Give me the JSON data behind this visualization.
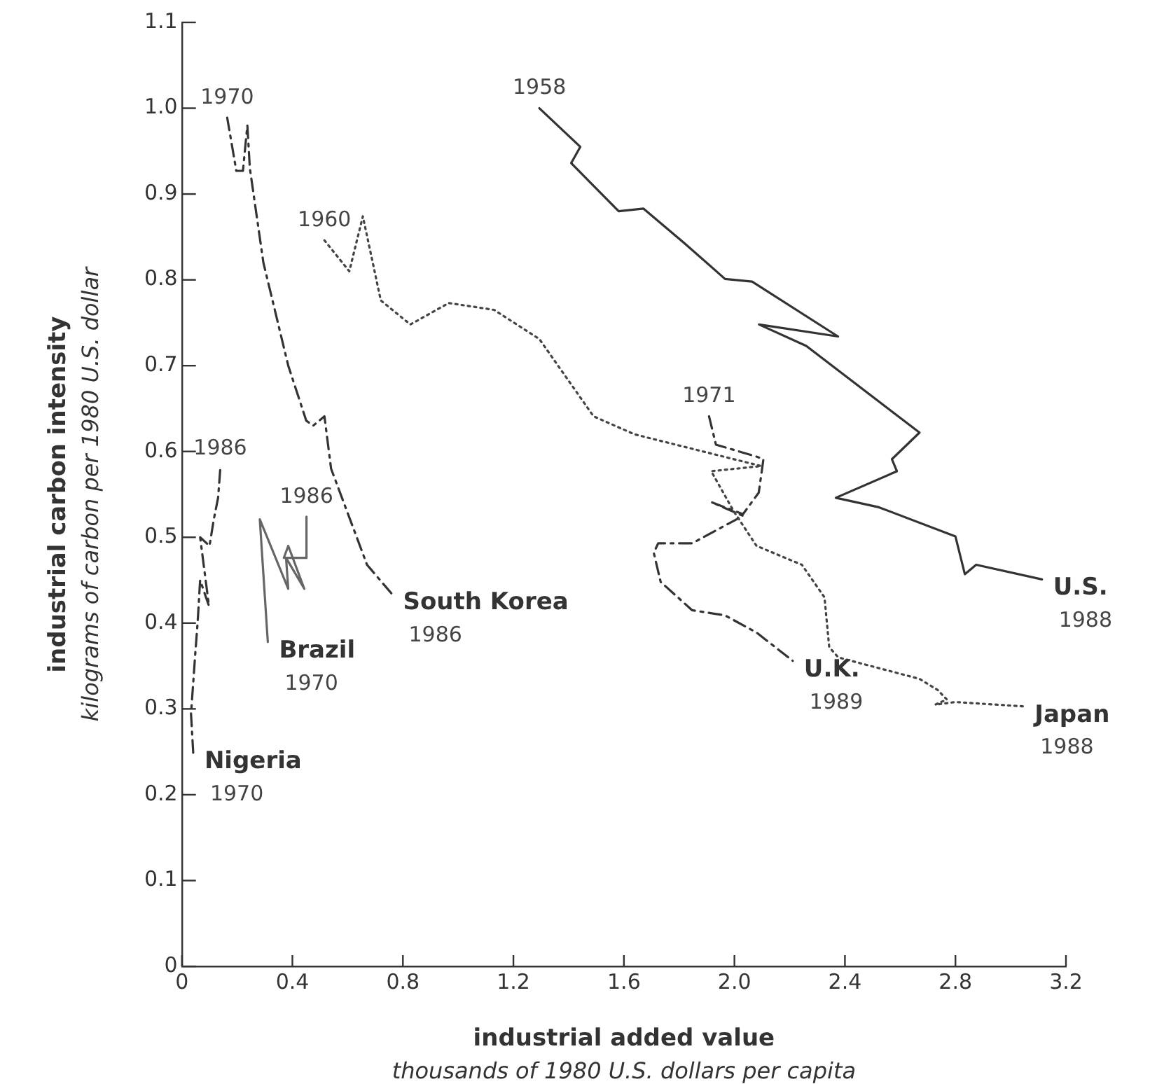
{
  "chart_data": {
    "type": "line",
    "xlabel": "industrial added value\nthousands of 1980 U.S. dollars per capita",
    "ylabel": "industrial carbon intensity\nkilograms of carbon per 1980 U.S. dollar",
    "xlim": [
      0,
      3.2
    ],
    "xticks": [
      0,
      0.4,
      0.8,
      1.2,
      1.6,
      {
        "value": 2,
        "label": "2.0"
      },
      2.4,
      2.8,
      3.2
    ],
    "ylim": [
      0,
      1.1
    ],
    "yticks": [
      0,
      0.1,
      0.2,
      0.3,
      0.4,
      0.5,
      0.6,
      0.7,
      0.8,
      0.9,
      {
        "value": 1,
        "label": "1.0"
      },
      1.1
    ],
    "grid": false,
    "legend": false,
    "marker": "none",
    "series": [
      {
        "name": "U.S.",
        "color": "#333333",
        "line_style": "solid",
        "x": [
          1.294,
          1.442,
          1.409,
          1.581,
          1.671,
          1.818,
          1.966,
          2.064,
          2.375,
          2.089,
          2.26,
          2.67,
          2.57,
          2.588,
          2.367,
          2.523,
          2.8,
          2.834,
          2.875,
          3.113
        ],
        "values": [
          1.0,
          0.955,
          0.936,
          0.88,
          0.883,
          0.843,
          0.801,
          0.798,
          0.734,
          0.748,
          0.723,
          0.622,
          0.591,
          0.577,
          0.546,
          0.535,
          0.501,
          0.457,
          0.468,
          0.451
        ]
      },
      {
        "name": "Japan",
        "color": "#444444",
        "line_style": "dotted",
        "x": [
          0.516,
          0.606,
          0.655,
          0.72,
          0.827,
          0.966,
          1.13,
          1.294,
          1.49,
          1.638,
          2.097,
          1.916,
          1.998,
          2.08,
          2.244,
          2.326,
          2.343,
          2.376,
          2.67,
          2.736,
          2.769,
          2.727,
          2.8,
          3.046
        ],
        "values": [
          0.846,
          0.81,
          0.874,
          0.776,
          0.748,
          0.773,
          0.765,
          0.731,
          0.641,
          0.62,
          0.583,
          0.577,
          0.53,
          0.49,
          0.468,
          0.43,
          0.372,
          0.36,
          0.335,
          0.322,
          0.311,
          0.305,
          0.308,
          0.303
        ]
      },
      {
        "name": "U.K.",
        "color": "#333333",
        "line_style": "dashed",
        "x": [
          1.908,
          1.933,
          2.08,
          2.105,
          2.088,
          2.031,
          1.916,
          2.031,
          1.847,
          1.724,
          1.708,
          1.733,
          1.847,
          1.966,
          2.08,
          2.211
        ],
        "values": [
          0.641,
          0.608,
          0.594,
          0.591,
          0.552,
          0.527,
          0.541,
          0.525,
          0.493,
          0.493,
          0.482,
          0.448,
          0.415,
          0.409,
          0.389,
          0.356
        ]
      },
      {
        "name": "South Korea",
        "color": "#333333",
        "line_style": "dashed",
        "x": [
          0.164,
          0.197,
          0.221,
          0.237,
          0.246,
          0.295,
          0.385,
          0.45,
          0.475,
          0.516,
          0.54,
          0.67,
          0.76
        ],
        "values": [
          0.989,
          0.927,
          0.927,
          0.98,
          0.93,
          0.82,
          0.7,
          0.636,
          0.63,
          0.641,
          0.58,
          0.468,
          0.434
        ]
      },
      {
        "name": "Brazil",
        "color": "#666666",
        "line_style": "solid",
        "x": [
          0.311,
          0.282,
          0.385,
          0.377,
          0.443,
          0.385,
          0.369,
          0.451,
          0.451
        ],
        "values": [
          0.378,
          0.521,
          0.44,
          0.476,
          0.44,
          0.49,
          0.476,
          0.476,
          0.524
        ]
      },
      {
        "name": "Nigeria",
        "color": "#333333",
        "line_style": "dashed",
        "x": [
          0.041,
          0.033,
          0.049,
          0.057,
          0.066,
          0.098,
          0.082,
          0.066,
          0.1,
          0.115,
          0.131,
          0.139
        ],
        "values": [
          0.249,
          0.294,
          0.367,
          0.401,
          0.45,
          0.42,
          0.46,
          0.5,
          0.49,
          0.52,
          0.546,
          0.58
        ]
      }
    ],
    "annotations": [
      {
        "text": "1958",
        "x": 1.294,
        "y": 1.0
      },
      {
        "text": "1988",
        "x": 3.113,
        "y": 0.451
      },
      {
        "text": "1960",
        "x": 0.516,
        "y": 0.846
      },
      {
        "text": "1988",
        "x": 3.046,
        "y": 0.303
      },
      {
        "text": "1971",
        "x": 1.908,
        "y": 0.641
      },
      {
        "text": "1989",
        "x": 2.211,
        "y": 0.356
      },
      {
        "text": "1970",
        "x": 0.164,
        "y": 0.989
      },
      {
        "text": "1986",
        "x": 0.76,
        "y": 0.434
      },
      {
        "text": "1986",
        "x": 0.451,
        "y": 0.524
      },
      {
        "text": "1970",
        "x": 0.311,
        "y": 0.378
      },
      {
        "text": "1986",
        "x": 0.139,
        "y": 0.58
      },
      {
        "text": "1970",
        "x": 0.041,
        "y": 0.249
      }
    ]
  }
}
